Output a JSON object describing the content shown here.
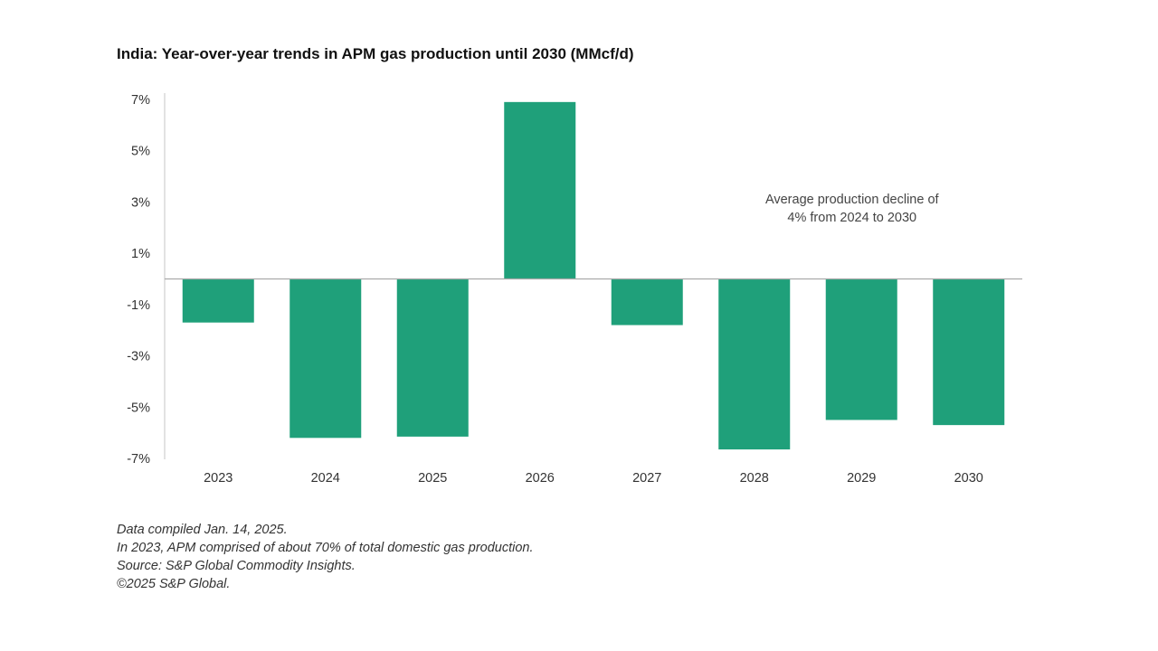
{
  "chart_data": {
    "type": "bar",
    "title": "India: Year-over-year trends in APM gas production until 2030 (MMcf/d)",
    "categories": [
      "2023",
      "2024",
      "2025",
      "2026",
      "2027",
      "2028",
      "2029",
      "2030"
    ],
    "values": [
      -1.7,
      -6.2,
      -6.15,
      6.9,
      -1.8,
      -6.65,
      -5.5,
      -5.7
    ],
    "y_ticks": [
      {
        "value": 7,
        "label": "7%"
      },
      {
        "value": 5,
        "label": "5%"
      },
      {
        "value": 3,
        "label": "3%"
      },
      {
        "value": 1,
        "label": "1%"
      },
      {
        "value": -1,
        "label": "-1%"
      },
      {
        "value": -3,
        "label": "-3%"
      },
      {
        "value": -5,
        "label": "-5%"
      },
      {
        "value": -7,
        "label": "-7%"
      }
    ],
    "ylim": [
      -7,
      7
    ],
    "xlabel": "",
    "ylabel": "",
    "grid": false,
    "bar_color": "#1fa07a",
    "annotation": {
      "lines": [
        "Average production decline of",
        "4% from 2024 to 2030"
      ],
      "x_category": "2028",
      "y_value": 2.8
    }
  },
  "footnotes": [
    "Data compiled Jan. 14, 2025.",
    "In 2023, APM comprised of about 70% of total domestic gas production.",
    "Source: S&P Global Commodity Insights.",
    "©2025 S&P Global."
  ]
}
